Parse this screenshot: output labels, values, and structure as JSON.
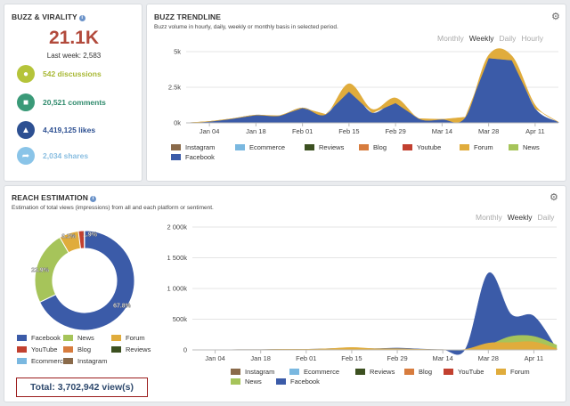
{
  "buzz": {
    "title": "BUZZ & VIRALITY",
    "big_value": "21.1K",
    "last_week": "Last week: 2,583",
    "stats": [
      {
        "label": "542 discussions",
        "icon": "speech-bubble-icon",
        "color": "#b5c43a"
      },
      {
        "label": "20,521 comments",
        "icon": "comments-icon",
        "color": "#3a9a78"
      },
      {
        "label": "4,419,125 likes",
        "icon": "thumbs-up-icon",
        "color": "#2d5092"
      },
      {
        "label": "2,034 shares",
        "icon": "share-icon",
        "color": "#8ac4e8"
      }
    ]
  },
  "trend": {
    "title": "BUZZ TRENDLINE",
    "subtitle": "Buzz volume in hourly, daily, weekly or monthly basis in selected period.",
    "periods": [
      "Monthly",
      "Weekly",
      "Daily",
      "Hourly"
    ],
    "active_period": "Weekly",
    "legend": [
      "Instagram",
      "Ecommerce",
      "Reviews",
      "Blog",
      "Youtube",
      "Forum",
      "News",
      "Facebook"
    ]
  },
  "reach": {
    "title": "REACH ESTIMATION",
    "subtitle": "Estimation of total views (impressions) from all and each platform or sentiment.",
    "periods": [
      "Monthly",
      "Weekly",
      "Daily"
    ],
    "active_period": "Weekly",
    "donut_legend": [
      "Facebook",
      "News",
      "Forum",
      "YouTube",
      "Blog",
      "Reviews",
      "Ecommerce",
      "Instagram"
    ],
    "area_legend": [
      "Instagram",
      "Ecommerce",
      "Reviews",
      "Blog",
      "YouTube",
      "Forum",
      "News",
      "Facebook"
    ],
    "total": "Total: 3,702,942 view(s)"
  },
  "colors": {
    "Facebook": "#3b5ba8",
    "News": "#a6c45a",
    "Forum": "#e0ac3c",
    "YouTube": "#c2402f",
    "Youtube": "#c2402f",
    "Blog": "#d77c3e",
    "Reviews": "#3c5020",
    "Ecommerce": "#7ab8e0",
    "Instagram": "#8a6a4a"
  },
  "chart_data": [
    {
      "type": "area",
      "title": "BUZZ TRENDLINE",
      "x": [
        "Dec 28",
        "Jan 04",
        "Jan 11",
        "Jan 18",
        "Jan 25",
        "Feb 01",
        "Feb 08",
        "Feb 15",
        "Feb 22",
        "Feb 29",
        "Mar 07",
        "Mar 14",
        "Mar 21",
        "Mar 28",
        "Apr 04",
        "Apr 11",
        "Apr 18"
      ],
      "x_ticks": [
        "Jan 04",
        "Jan 18",
        "Feb 01",
        "Feb 15",
        "Feb 29",
        "Mar 14",
        "Mar 28",
        "Apr 11"
      ],
      "y_ticks": [
        "0k",
        "2.5k",
        "5k"
      ],
      "ylim": [
        0,
        5000
      ],
      "series": [
        {
          "name": "Facebook",
          "values": [
            0,
            100,
            300,
            550,
            500,
            1050,
            600,
            2200,
            700,
            1400,
            300,
            250,
            400,
            4550,
            4400,
            1000,
            50
          ]
        },
        {
          "name": "Forum",
          "values": [
            0,
            0,
            0,
            0,
            0,
            0,
            0,
            550,
            250,
            350,
            0,
            0,
            0,
            200,
            300,
            250,
            0
          ]
        }
      ]
    },
    {
      "type": "pie",
      "title": "REACH ESTIMATION",
      "categories": [
        "Facebook",
        "News",
        "Forum",
        "YouTube",
        "Blog"
      ],
      "values": [
        67.8,
        23.9,
        6.3,
        1.9,
        0.1
      ],
      "labels": [
        "67.8%",
        "23.9%",
        "6.3%",
        "1.9%",
        ""
      ]
    },
    {
      "type": "area",
      "x": [
        "Dec 28",
        "Jan 04",
        "Jan 11",
        "Jan 18",
        "Jan 25",
        "Feb 01",
        "Feb 08",
        "Feb 15",
        "Feb 22",
        "Feb 29",
        "Mar 07",
        "Mar 14",
        "Mar 21",
        "Mar 28",
        "Apr 04",
        "Apr 11",
        "Apr 18"
      ],
      "x_ticks": [
        "Jan 04",
        "Jan 18",
        "Feb 01",
        "Feb 15",
        "Feb 29",
        "Mar 14",
        "Mar 28",
        "Apr 11"
      ],
      "y_ticks": [
        "0",
        "500k",
        "1 000k",
        "1 500k",
        "2 000k"
      ],
      "ylim": [
        0,
        2000000
      ],
      "series": [
        {
          "name": "Facebook",
          "values": [
            0,
            0,
            5000,
            5000,
            10000,
            10000,
            20000,
            30000,
            20000,
            30000,
            15000,
            5000,
            20000,
            1250000,
            580000,
            550000,
            20000
          ]
        },
        {
          "name": "News",
          "values": [
            0,
            0,
            0,
            0,
            0,
            0,
            0,
            0,
            0,
            0,
            0,
            0,
            0,
            80000,
            220000,
            220000,
            80000
          ]
        },
        {
          "name": "Forum",
          "values": [
            0,
            0,
            5000,
            5000,
            10000,
            10000,
            20000,
            40000,
            20000,
            20000,
            10000,
            5000,
            10000,
            110000,
            120000,
            130000,
            20000
          ]
        }
      ]
    }
  ]
}
